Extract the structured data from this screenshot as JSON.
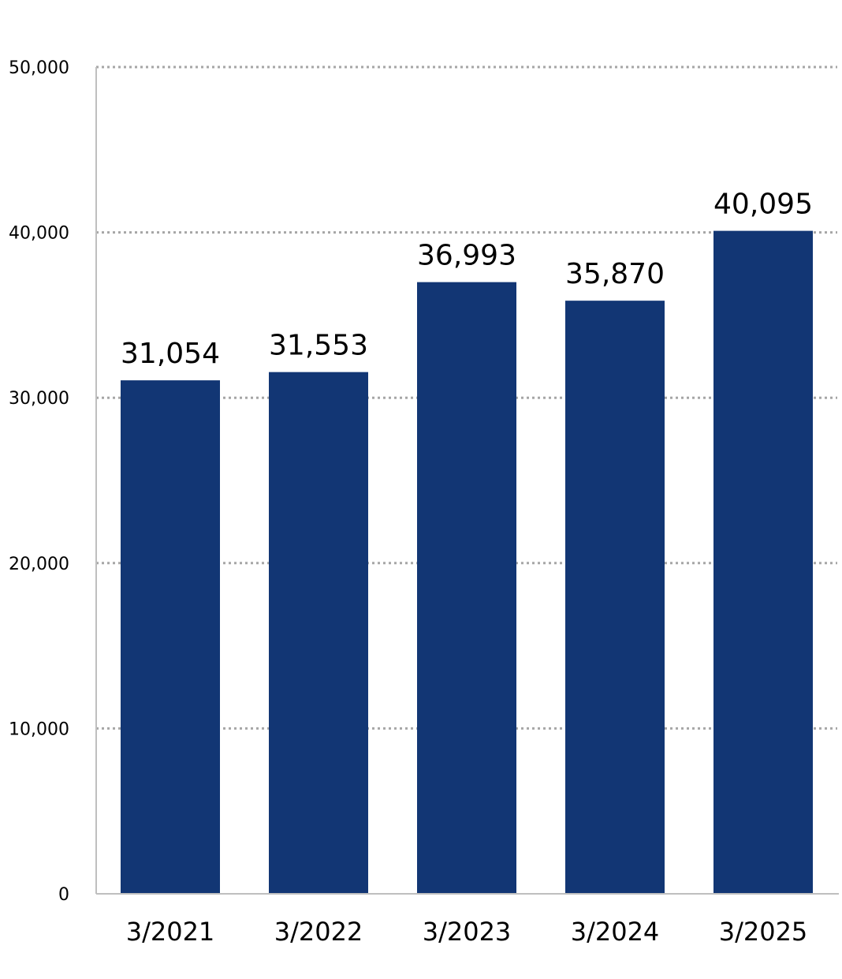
{
  "chart_data": {
    "type": "bar",
    "title": "",
    "xlabel": "",
    "ylabel": "",
    "categories": [
      "3/2021",
      "3/2022",
      "3/2023",
      "3/2024",
      "3/2025"
    ],
    "values": [
      31054,
      31553,
      36993,
      35870,
      40095
    ],
    "data_labels": [
      "31,054",
      "31,553",
      "36,993",
      "35,870",
      "40,095"
    ],
    "ylim": [
      0,
      50000
    ],
    "yticks": [
      0,
      10000,
      20000,
      30000,
      40000,
      50000
    ],
    "ytick_labels": [
      "0",
      "10,000",
      "20,000",
      "30,000",
      "40,000",
      "50,000"
    ],
    "grid": "horizontal-dotted",
    "legend": "none",
    "colors": {
      "bar": "#123674",
      "grid": "#a6a6a6",
      "axis": "#bfbfbf",
      "text": "#000000"
    }
  }
}
